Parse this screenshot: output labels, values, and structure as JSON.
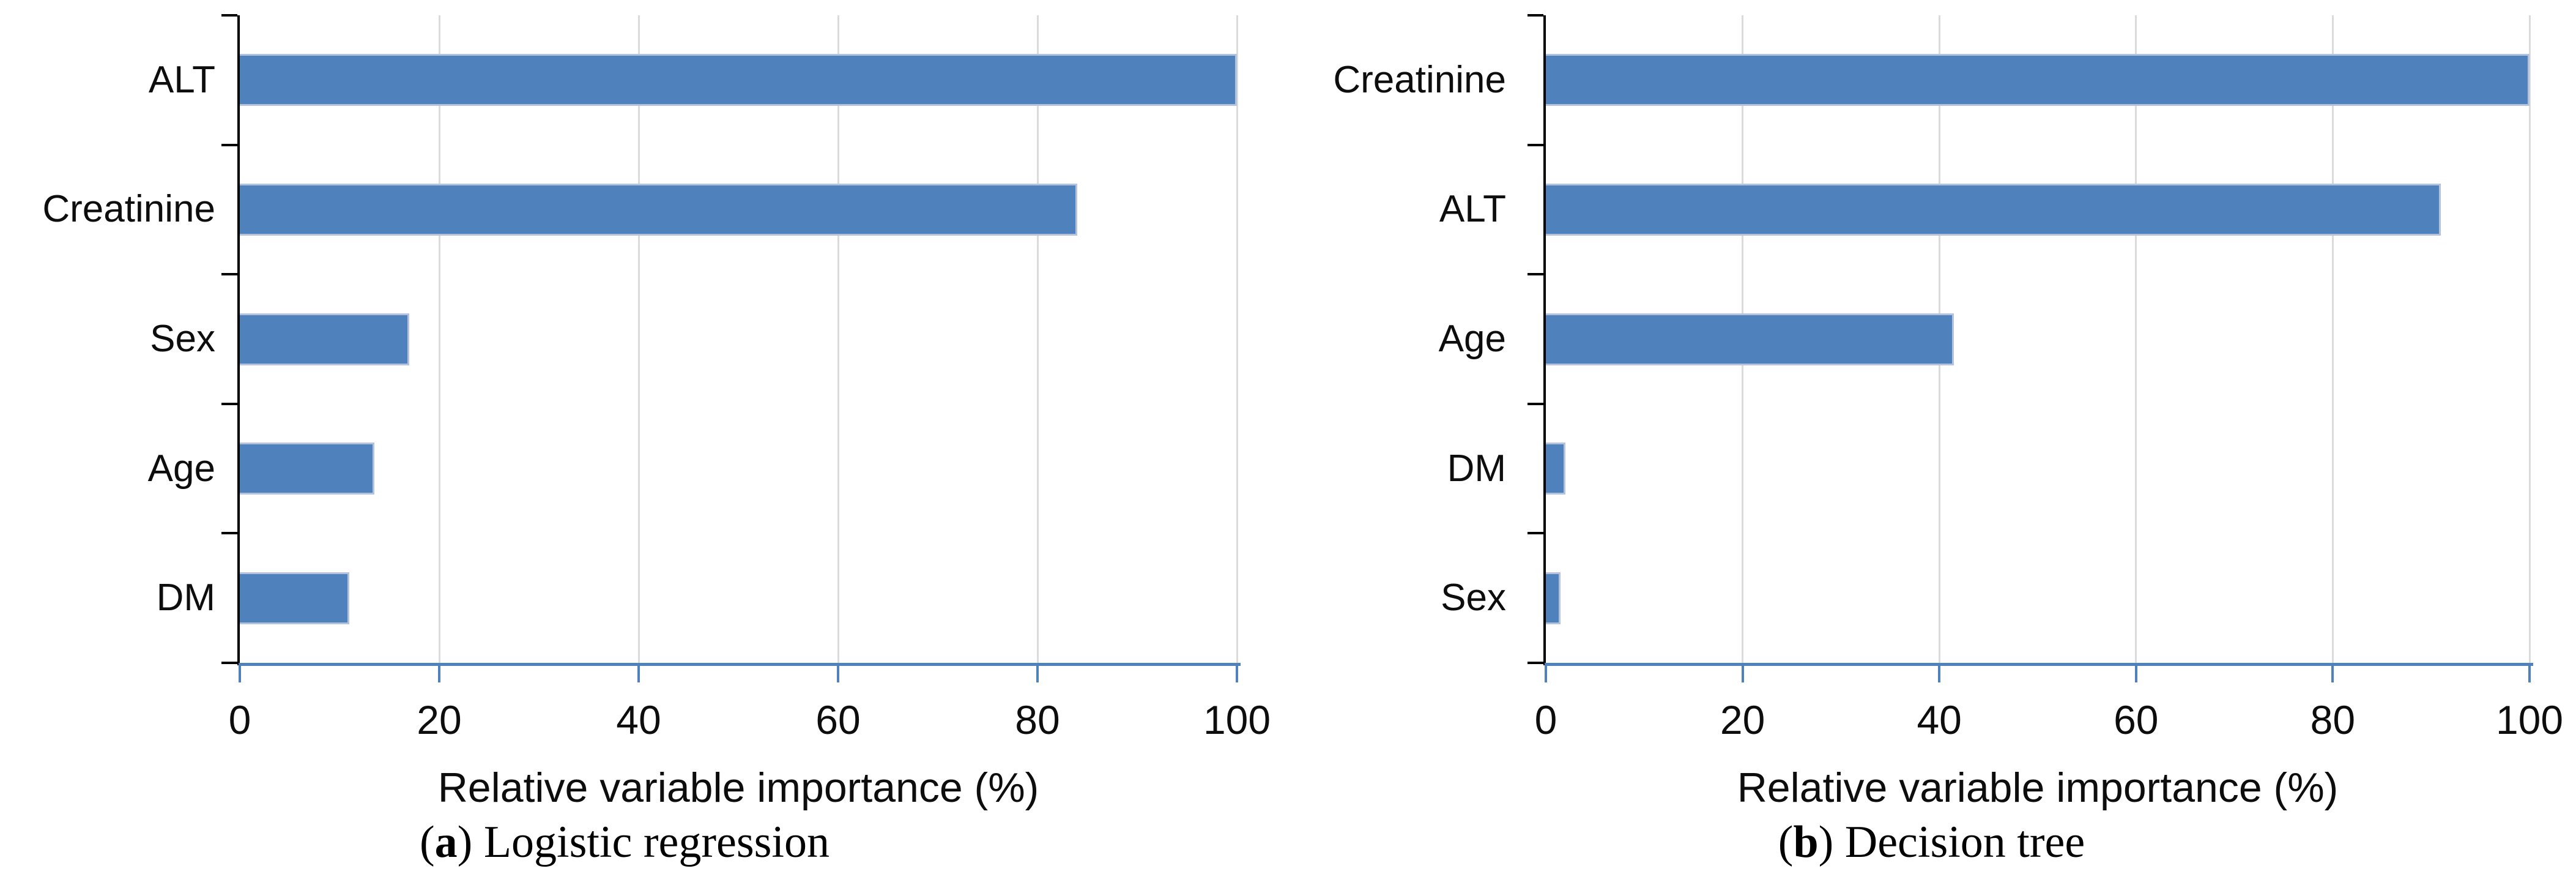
{
  "figure": {
    "background": "#ffffff",
    "axis_label": "Relative variable importance (%)"
  },
  "colors": {
    "bar_fill": "#4F81BD",
    "bar_border": "#B3C3DD",
    "gridline": "#DBDBDB",
    "value_axis_line": "#4F81BD",
    "category_axis_line": "#000000",
    "text": "#0D0D0D"
  },
  "chart_data": [
    {
      "id": "a",
      "type": "bar",
      "orientation": "horizontal",
      "caption_letter": "a",
      "caption_text": "Logistic regression",
      "categories": [
        "ALT",
        "Creatinine",
        "Sex",
        "Age",
        "DM"
      ],
      "values": [
        100,
        84,
        17,
        13.5,
        11
      ],
      "xlabel": "Relative variable importance (%)",
      "xlim": [
        0,
        100
      ],
      "xticks": [
        0,
        20,
        40,
        60,
        80,
        100
      ],
      "grid": true,
      "legend": false
    },
    {
      "id": "b",
      "type": "bar",
      "orientation": "horizontal",
      "caption_letter": "b",
      "caption_text": "Decision tree",
      "categories": [
        "Creatinine",
        "ALT",
        "Age",
        "DM",
        "Sex"
      ],
      "values": [
        100,
        91,
        41.5,
        2,
        1.5
      ],
      "xlabel": "Relative variable importance (%)",
      "xlim": [
        0,
        100
      ],
      "xticks": [
        0,
        20,
        40,
        60,
        80,
        100
      ],
      "grid": true,
      "legend": false
    }
  ]
}
